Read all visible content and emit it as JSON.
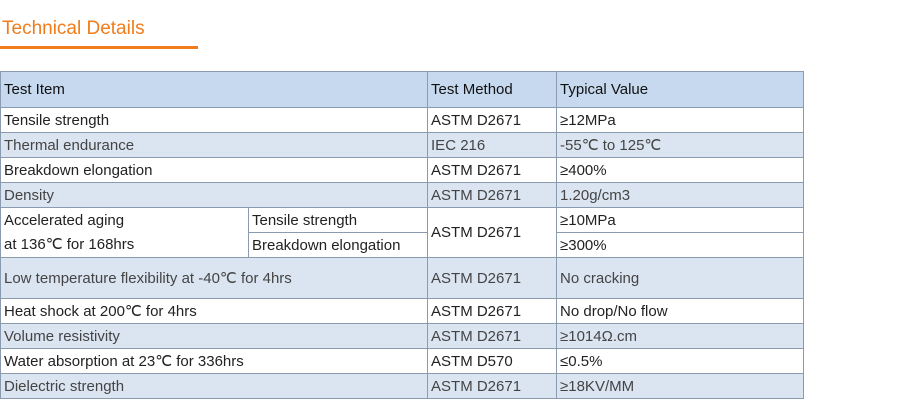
{
  "title": "Technical Details",
  "table": {
    "header": [
      "Test Item",
      "Test Method",
      "Typical Value"
    ],
    "rows": [
      [
        "Tensile strength",
        "ASTM D2671",
        "≥12MPa"
      ],
      [
        "Thermal endurance",
        "IEC 216",
        "-55℃ to 125℃"
      ],
      [
        "Breakdown elongation",
        "ASTM D2671",
        "≥400%"
      ],
      [
        "Density",
        "ASTM D2671",
        "1.20g/cm3"
      ],
      {
        "item_lines": [
          "Accelerated aging",
          "at 136℃ for 168hrs"
        ],
        "sub_items": [
          "Tensile strength",
          "Breakdown elongation"
        ],
        "method": "ASTM D2671",
        "values": [
          "≥10MPa",
          "≥300%"
        ]
      },
      [
        "Low temperature flexibility at -40℃ for 4hrs",
        "ASTM D2671",
        "No cracking"
      ],
      [
        "Heat shock at 200℃ for 4hrs",
        "ASTM D2671",
        "No drop/No flow"
      ],
      [
        "Volume resistivity",
        "ASTM D2671",
        "≥1014Ω.cm"
      ],
      [
        "Water absorption at 23℃ for 336hrs",
        "ASTM D570",
        "≤0.5%"
      ],
      [
        "Dielectric strength",
        "ASTM D2671",
        "≥18KV/MM"
      ]
    ]
  }
}
